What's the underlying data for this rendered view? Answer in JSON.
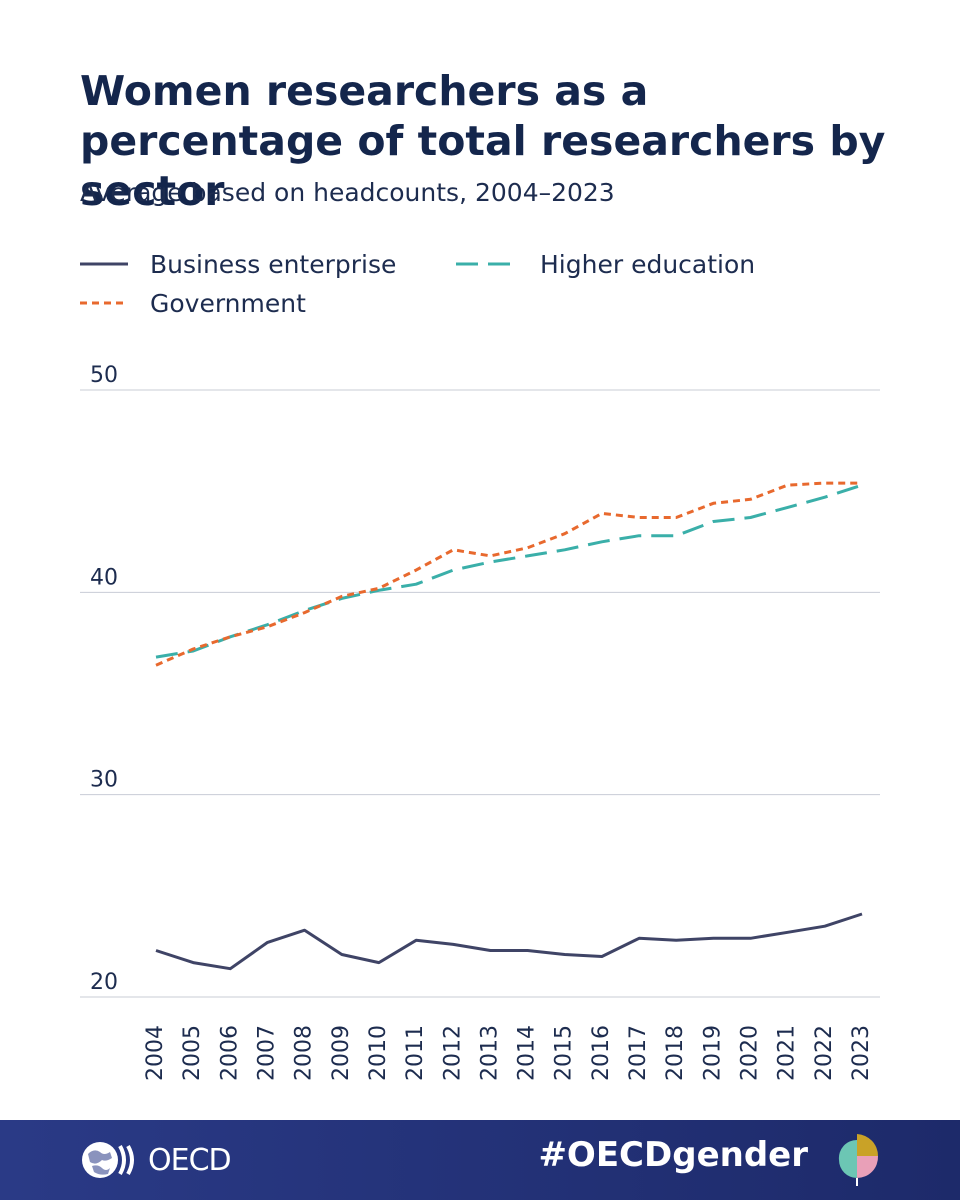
{
  "colors": {
    "business": "#3f4466",
    "higher_education": "#3aafa9",
    "government": "#e8692e",
    "grid": "#c8ccd6",
    "footer": "#24337a"
  },
  "footer": {
    "logo_text": "OECD",
    "hashtag": "#OECDgender"
  },
  "chart_data": {
    "type": "line",
    "title": "Women researchers as a percentage of total researchers by sector",
    "subtitle": "Average based on headcounts, 2004–2023",
    "x": [
      "2004",
      "2005",
      "2006",
      "2007",
      "2008",
      "2009",
      "2010",
      "2011",
      "2012",
      "2013",
      "2014",
      "2015",
      "2016",
      "2017",
      "2018",
      "2019",
      "2020",
      "2021",
      "2022",
      "2023"
    ],
    "y_ticks": [
      "20",
      "30",
      "40",
      "50"
    ],
    "ylim": [
      20,
      50
    ],
    "grid": true,
    "legend_position": "top-left",
    "series": [
      {
        "name": "Business enterprise",
        "style": "solid",
        "values": [
          22.3,
          21.7,
          21.4,
          22.7,
          23.3,
          22.1,
          21.7,
          22.8,
          22.6,
          22.3,
          22.3,
          22.1,
          22.0,
          22.9,
          22.8,
          22.9,
          22.9,
          23.2,
          23.5,
          24.1
        ]
      },
      {
        "name": "Higher education",
        "style": "dashed",
        "values": [
          36.8,
          37.1,
          37.8,
          38.4,
          39.1,
          39.7,
          40.1,
          40.4,
          41.1,
          41.5,
          41.8,
          42.1,
          42.5,
          42.8,
          42.8,
          43.5,
          43.7,
          44.2,
          44.7,
          45.3
        ]
      },
      {
        "name": "Government",
        "style": "dotted",
        "values": [
          36.4,
          37.2,
          37.8,
          38.3,
          39.0,
          39.8,
          40.2,
          41.1,
          42.1,
          41.8,
          42.2,
          42.9,
          43.9,
          43.7,
          43.7,
          44.4,
          44.6,
          45.3,
          45.4,
          45.4
        ]
      }
    ]
  }
}
